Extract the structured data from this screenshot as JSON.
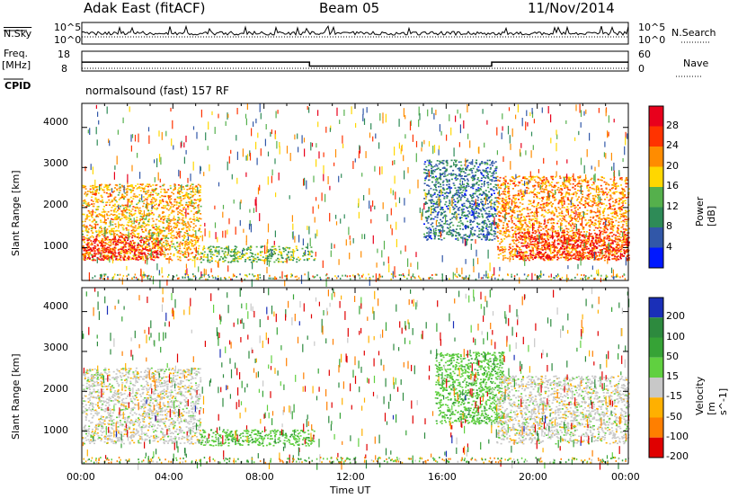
{
  "header": {
    "radar": "Adak East (fitACF)",
    "beam": "Beam 05",
    "date": "11/Nov/2014"
  },
  "top_panels": {
    "nsky_label": "N.Sky",
    "nsky_ticks": [
      "10^5",
      "10^0"
    ],
    "nsearch_label": "N.Search",
    "freq_label": "Freq.",
    "freq_unit": "[MHz]",
    "freq_ticks": [
      "18",
      "8"
    ],
    "nave_label": "Nave",
    "nave_ticks": [
      "60",
      "0"
    ],
    "cpid_label": "CPID",
    "cpid_text": "normalsound (fast) 157 RF"
  },
  "xaxis": {
    "label": "Time UT",
    "ticks": [
      "00:00",
      "04:00",
      "08:00",
      "12:00",
      "16:00",
      "20:00",
      "00:00"
    ]
  },
  "power_panel": {
    "ylabel": "Slant Range [km]",
    "yticks": [
      "4000",
      "3000",
      "2000",
      "1000"
    ],
    "colorbar_label": "Power [dB]",
    "colorbar_ticks": [
      "28",
      "24",
      "20",
      "16",
      "12",
      "8",
      "4"
    ],
    "colorbar_colors": [
      "#e8001c",
      "#ff3300",
      "#ff8c00",
      "#ffd700",
      "#55b04c",
      "#2e8b57",
      "#3157a8",
      "#0018ff"
    ]
  },
  "velocity_panel": {
    "ylabel": "Slant Range [km]",
    "yticks": [
      "4000",
      "3000",
      "2000",
      "1000"
    ],
    "colorbar_label": "Velocity [m s^-1]",
    "colorbar_ticks": [
      "200",
      "100",
      "50",
      "15",
      "-15",
      "-50",
      "-100",
      "-200"
    ],
    "colorbar_colors": [
      "#1a2fb8",
      "#2d8a3e",
      "#36a336",
      "#60d040",
      "#c8c8c8",
      "#ffb000",
      "#ff7f00",
      "#e00000"
    ]
  },
  "chart_data": [
    {
      "type": "heatmap",
      "title": "Adak East (fitACF) Beam 05 11/Nov/2014",
      "xlabel": "Time UT",
      "ylabel": "Slant Range [km]",
      "xlim": [
        "00:00",
        "24:00"
      ],
      "ylim": [
        180,
        4600
      ],
      "colorbar": "Power [dB]",
      "colorbar_range": [
        0,
        30
      ],
      "regions": [
        {
          "t_start": 0.0,
          "t_end": 5.2,
          "r_min": 700,
          "r_max": 2600,
          "power_db": 20
        },
        {
          "t_start": 0.0,
          "t_end": 3.5,
          "r_min": 700,
          "r_max": 1300,
          "power_db": 28
        },
        {
          "t_start": 5.2,
          "t_end": 10.2,
          "r_min": 650,
          "r_max": 1050,
          "power_db": 14
        },
        {
          "t_start": 15.0,
          "t_end": 18.2,
          "r_min": 1200,
          "r_max": 3200,
          "power_db": 8
        },
        {
          "t_start": 18.2,
          "t_end": 24.0,
          "r_min": 700,
          "r_max": 2800,
          "power_db": 22
        },
        {
          "t_start": 19.0,
          "t_end": 24.0,
          "r_min": 700,
          "r_max": 1400,
          "power_db": 28
        }
      ]
    },
    {
      "type": "heatmap",
      "title": "",
      "xlabel": "Time UT",
      "ylabel": "Slant Range [km]",
      "xlim": [
        "00:00",
        "24:00"
      ],
      "ylim": [
        180,
        4600
      ],
      "colorbar": "Velocity [m s^-1]",
      "colorbar_range": [
        -200,
        200
      ],
      "regions": [
        {
          "t_start": 0.0,
          "t_end": 5.2,
          "r_min": 700,
          "r_max": 2600,
          "velocity": 0
        },
        {
          "t_start": 5.2,
          "t_end": 10.2,
          "r_min": 650,
          "r_max": 1050,
          "velocity": 40
        },
        {
          "t_start": 15.5,
          "t_end": 18.5,
          "r_min": 1200,
          "r_max": 3000,
          "velocity": 40
        },
        {
          "t_start": 18.2,
          "t_end": 24.0,
          "r_min": 700,
          "r_max": 2400,
          "velocity": 0
        }
      ]
    },
    {
      "type": "line",
      "title": "",
      "xlabel": "Time UT",
      "ylabel": "Freq. [MHz]",
      "ylim": [
        8,
        18
      ],
      "x": [
        "00:00",
        "10:00",
        "10:00",
        "18:00",
        "18:00",
        "24:00"
      ],
      "values": [
        12.5,
        12.5,
        10.5,
        10.5,
        12.5,
        12.5
      ]
    }
  ]
}
